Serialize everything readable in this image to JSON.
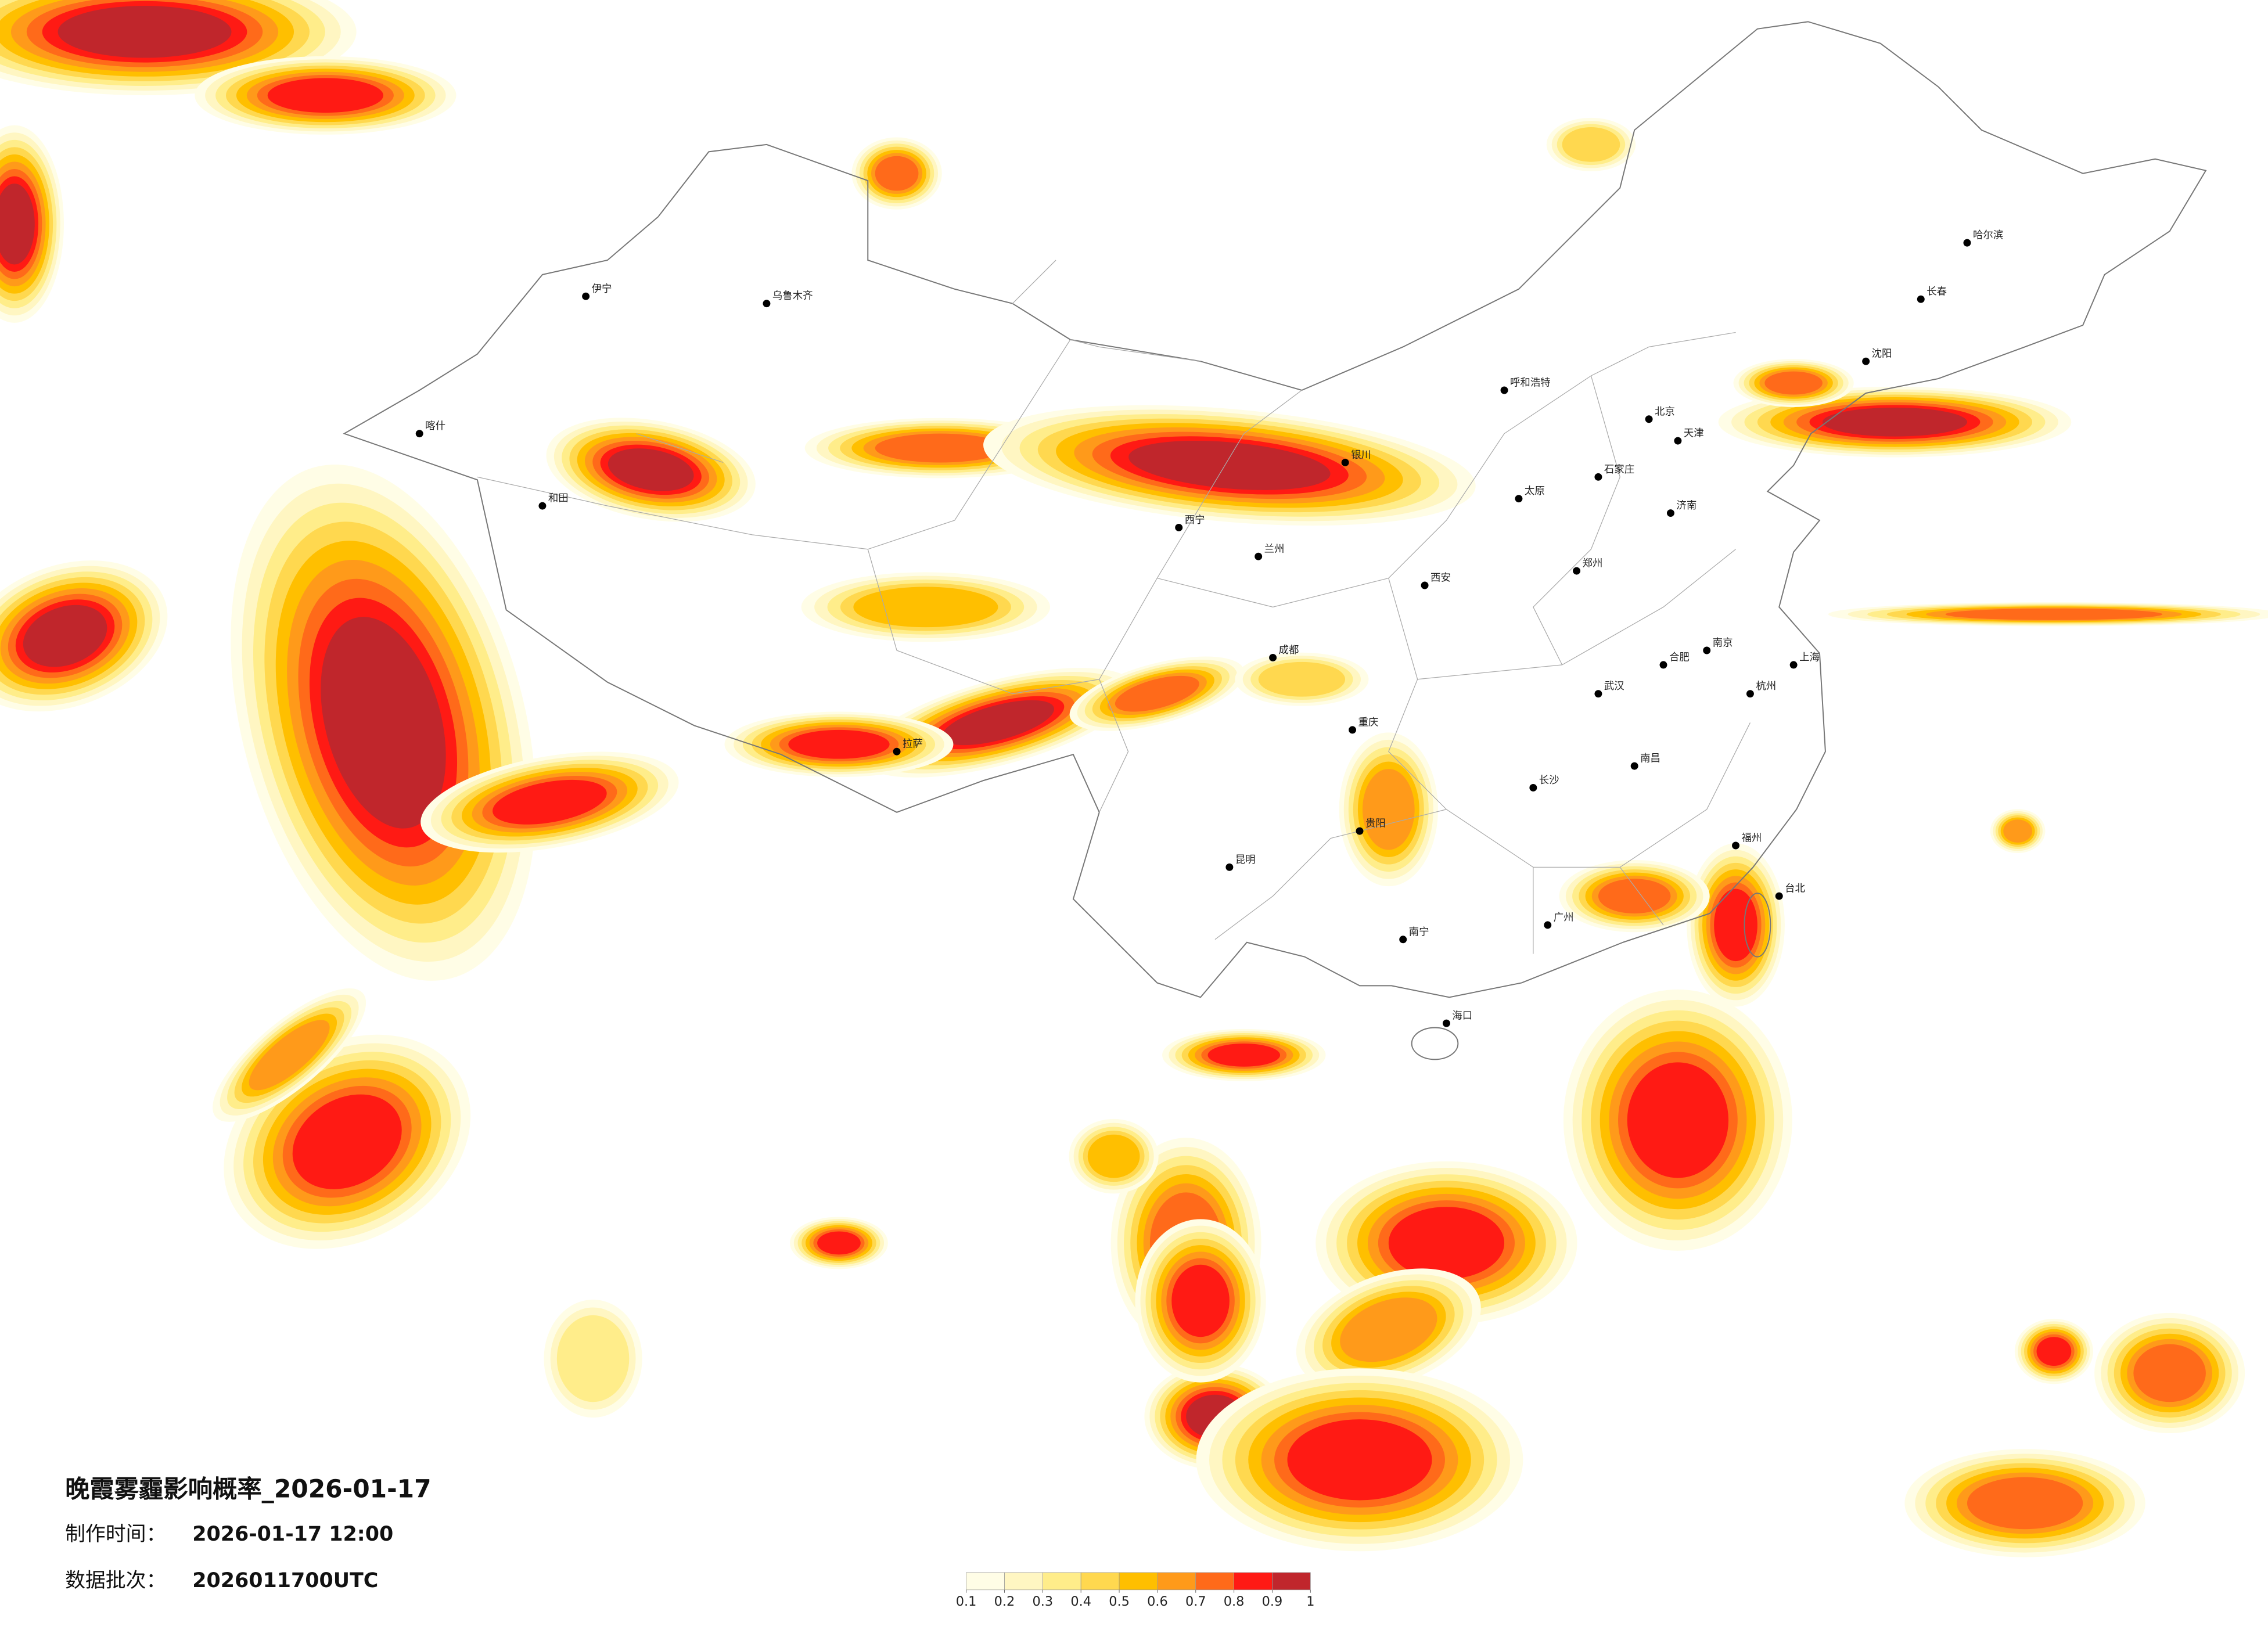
{
  "title": "晚霞雾霾影响概率_2026-01-17",
  "info": [
    {
      "label": "制作时间：",
      "value": "2026-01-17 12:00"
    },
    {
      "label": "数据批次：",
      "value": "2026011700UTC"
    }
  ],
  "legend": {
    "colors": [
      "#fffde6",
      "#fff6c2",
      "#ffed8a",
      "#ffd84f",
      "#ffbf00",
      "#ff9a1a",
      "#ff6a1a",
      "#ff1a14",
      "#c0262c"
    ],
    "ticks": [
      0.1,
      0.2,
      0.3,
      0.4,
      0.5,
      0.6,
      0.7,
      0.8,
      0.9,
      1
    ]
  },
  "cities": [
    "哈尔滨",
    "长春",
    "沈阳",
    "北京",
    "天津",
    "石家庄",
    "太原",
    "呼和浩特",
    "济南",
    "郑州",
    "西安",
    "兰州",
    "西宁",
    "银川",
    "乌鲁木齐",
    "拉萨",
    "成都",
    "重庆",
    "贵阳",
    "昆明",
    "南宁",
    "广州",
    "海口",
    "长沙",
    "武汉",
    "南昌",
    "福州",
    "杭州",
    "上海",
    "南京",
    "合肥",
    "台北",
    "喀什",
    "和田",
    "伊宁"
  ]
}
